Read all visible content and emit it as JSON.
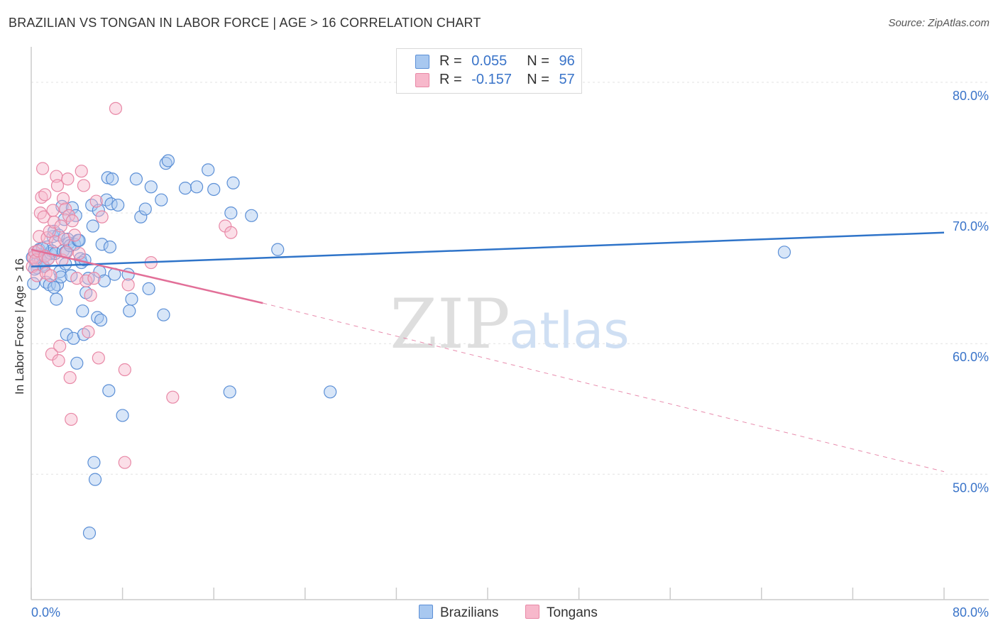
{
  "title": "BRAZILIAN VS TONGAN IN LABOR FORCE | AGE > 16 CORRELATION CHART",
  "source": "Source: ZipAtlas.com",
  "watermark": {
    "zip": "ZIP",
    "atlas": "atlas"
  },
  "legend": {
    "r_label": "R =",
    "n_label": "N =",
    "rows": [
      {
        "name": "Brazilians",
        "r": "0.055",
        "n": "96",
        "color": "#a8c8f0"
      },
      {
        "name": "Tongans",
        "r": "-0.157",
        "n": "57",
        "color": "#f7b8cb"
      }
    ]
  },
  "colors": {
    "blue_fill": "#a8c8f0",
    "blue_stroke": "#5b8fd6",
    "blue_line": "#2f74c9",
    "pink_fill": "#f7b8cb",
    "pink_stroke": "#e888a6",
    "pink_line": "#e26f98",
    "tick_text": "#3a74c9",
    "grid": "#e2e2e2"
  },
  "chart_data": {
    "type": "scatter",
    "title": "BRAZILIAN VS TONGAN IN LABOR FORCE | AGE > 16 CORRELATION CHART",
    "xlabel": "",
    "ylabel": "In Labor Force | Age > 16",
    "xlim": [
      0,
      80
    ],
    "ylim": [
      40.4,
      82.5
    ],
    "x_tick_labels": [
      {
        "value": 0,
        "label": "0.0%"
      },
      {
        "value": 80,
        "label": "80.0%"
      }
    ],
    "y_tick_labels": [
      {
        "value": 50,
        "label": "50.0%"
      },
      {
        "value": 60,
        "label": "60.0%"
      },
      {
        "value": 70,
        "label": "70.0%"
      },
      {
        "value": 80,
        "label": "80.0%"
      }
    ],
    "x_minor_ticks": [
      0,
      8,
      16,
      24,
      32,
      40,
      48,
      56,
      64,
      72,
      80
    ],
    "grid": true,
    "series": [
      {
        "name": "Brazilians",
        "color": "#a8c8f0",
        "trend": {
          "x": [
            0,
            80
          ],
          "y": [
            65.9,
            68.5
          ]
        },
        "points": [
          [
            0.1,
            66.6
          ],
          [
            0.2,
            64.6
          ],
          [
            0.3,
            67.0
          ],
          [
            0.4,
            66.1
          ],
          [
            0.5,
            65.8
          ],
          [
            0.6,
            66.5
          ],
          [
            0.7,
            67.2
          ],
          [
            0.8,
            66.3
          ],
          [
            0.9,
            66.8
          ],
          [
            1.0,
            66.0
          ],
          [
            1.1,
            65.9
          ],
          [
            1.2,
            66.7
          ],
          [
            1.3,
            64.7
          ],
          [
            1.4,
            67.4
          ],
          [
            1.5,
            66.5
          ],
          [
            1.6,
            64.5
          ],
          [
            1.7,
            66.9
          ],
          [
            1.8,
            67.1
          ],
          [
            1.9,
            68.2
          ],
          [
            2.0,
            68.6
          ],
          [
            2.1,
            66.9
          ],
          [
            2.2,
            63.4
          ],
          [
            2.3,
            64.5
          ],
          [
            2.4,
            68.3
          ],
          [
            2.5,
            65.5
          ],
          [
            2.6,
            65.1
          ],
          [
            2.7,
            70.5
          ],
          [
            2.8,
            67.1
          ],
          [
            2.9,
            69.5
          ],
          [
            3.0,
            67.0
          ],
          [
            3.1,
            60.7
          ],
          [
            3.2,
            68.0
          ],
          [
            3.3,
            67.7
          ],
          [
            3.4,
            67.5
          ],
          [
            3.5,
            65.2
          ],
          [
            3.6,
            70.4
          ],
          [
            3.7,
            60.4
          ],
          [
            3.8,
            67.6
          ],
          [
            3.9,
            69.8
          ],
          [
            4.0,
            58.5
          ],
          [
            4.1,
            67.9
          ],
          [
            4.2,
            67.9
          ],
          [
            4.3,
            66.5
          ],
          [
            4.4,
            66.2
          ],
          [
            4.5,
            62.5
          ],
          [
            4.6,
            60.7
          ],
          [
            4.7,
            66.4
          ],
          [
            4.8,
            63.9
          ],
          [
            5.0,
            65.0
          ],
          [
            5.1,
            45.5
          ],
          [
            5.3,
            70.6
          ],
          [
            5.4,
            69.0
          ],
          [
            5.5,
            50.9
          ],
          [
            5.6,
            49.6
          ],
          [
            5.8,
            62.0
          ],
          [
            5.9,
            70.2
          ],
          [
            6.0,
            65.5
          ],
          [
            6.1,
            61.8
          ],
          [
            6.2,
            67.6
          ],
          [
            6.4,
            64.8
          ],
          [
            6.6,
            71.0
          ],
          [
            6.7,
            72.7
          ],
          [
            6.8,
            56.4
          ],
          [
            6.9,
            67.4
          ],
          [
            7.0,
            70.7
          ],
          [
            7.1,
            72.6
          ],
          [
            7.3,
            65.3
          ],
          [
            7.6,
            70.6
          ],
          [
            8.0,
            54.5
          ],
          [
            8.5,
            65.3
          ],
          [
            8.6,
            62.5
          ],
          [
            8.8,
            63.4
          ],
          [
            9.2,
            72.6
          ],
          [
            9.6,
            69.7
          ],
          [
            10.0,
            70.3
          ],
          [
            10.3,
            64.2
          ],
          [
            10.5,
            72.0
          ],
          [
            11.4,
            71.0
          ],
          [
            11.6,
            62.2
          ],
          [
            11.8,
            73.8
          ],
          [
            12.0,
            74.0
          ],
          [
            13.5,
            71.9
          ],
          [
            14.5,
            72.0
          ],
          [
            15.5,
            73.3
          ],
          [
            16.0,
            71.8
          ],
          [
            17.4,
            56.3
          ],
          [
            17.5,
            70.0
          ],
          [
            17.7,
            72.3
          ],
          [
            19.3,
            69.8
          ],
          [
            21.6,
            67.2
          ],
          [
            26.2,
            56.3
          ],
          [
            66.0,
            67.0
          ],
          [
            0.3,
            65.7
          ],
          [
            1.0,
            67.3
          ],
          [
            2.0,
            64.3
          ],
          [
            3.0,
            66.1
          ]
        ]
      },
      {
        "name": "Tongans",
        "color": "#f7b8cb",
        "trend": {
          "x": [
            0,
            20.3
          ],
          "y": [
            67.2,
            63.1
          ]
        },
        "trend_extension": {
          "x": [
            20.3,
            80
          ],
          "y": [
            63.1,
            50.2
          ]
        },
        "points": [
          [
            0.1,
            65.9
          ],
          [
            0.2,
            66.6
          ],
          [
            0.3,
            67.0
          ],
          [
            0.4,
            66.4
          ],
          [
            0.5,
            65.2
          ],
          [
            0.6,
            67.1
          ],
          [
            0.7,
            68.2
          ],
          [
            0.8,
            70.0
          ],
          [
            0.9,
            71.2
          ],
          [
            1.0,
            73.4
          ],
          [
            1.1,
            69.7
          ],
          [
            1.2,
            66.7
          ],
          [
            1.3,
            65.4
          ],
          [
            1.4,
            68.1
          ],
          [
            1.5,
            66.5
          ],
          [
            1.6,
            68.6
          ],
          [
            1.7,
            65.2
          ],
          [
            1.8,
            59.2
          ],
          [
            1.9,
            70.2
          ],
          [
            2.0,
            69.3
          ],
          [
            2.1,
            67.8
          ],
          [
            2.2,
            72.8
          ],
          [
            2.3,
            72.1
          ],
          [
            2.4,
            58.7
          ],
          [
            2.5,
            59.8
          ],
          [
            2.6,
            69.0
          ],
          [
            2.7,
            66.4
          ],
          [
            2.8,
            71.1
          ],
          [
            2.9,
            68.0
          ],
          [
            3.0,
            70.3
          ],
          [
            3.1,
            67.0
          ],
          [
            3.2,
            72.6
          ],
          [
            3.3,
            69.8
          ],
          [
            3.4,
            57.4
          ],
          [
            3.5,
            54.2
          ],
          [
            3.6,
            69.4
          ],
          [
            3.8,
            68.3
          ],
          [
            4.0,
            65.0
          ],
          [
            4.2,
            66.9
          ],
          [
            4.4,
            73.2
          ],
          [
            4.6,
            72.1
          ],
          [
            4.8,
            64.8
          ],
          [
            5.0,
            60.9
          ],
          [
            5.2,
            63.7
          ],
          [
            5.5,
            65.0
          ],
          [
            5.7,
            70.9
          ],
          [
            5.9,
            58.9
          ],
          [
            6.2,
            69.7
          ],
          [
            7.4,
            78.0
          ],
          [
            8.2,
            58.0
          ],
          [
            8.2,
            50.9
          ],
          [
            8.5,
            64.5
          ],
          [
            10.5,
            66.2
          ],
          [
            12.4,
            55.9
          ],
          [
            17.0,
            69.0
          ],
          [
            17.5,
            68.5
          ],
          [
            1.2,
            71.4
          ]
        ]
      }
    ]
  }
}
